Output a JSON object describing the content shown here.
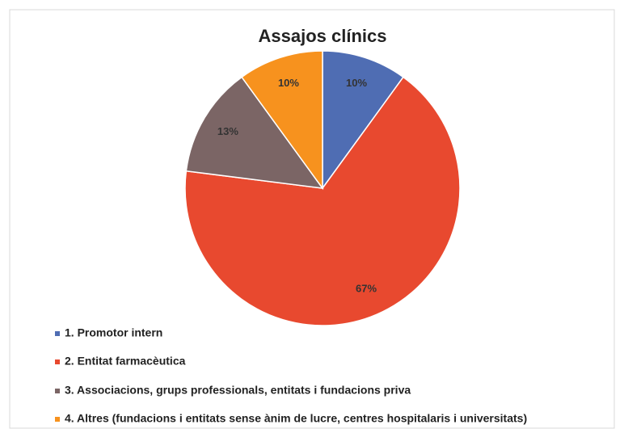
{
  "chart_data": {
    "type": "pie",
    "title": "Assajos clínics",
    "categories": [
      "1. Promotor intern",
      "2. Entitat farmacèutica",
      "3. Associacions, grups professionals, entitats i fundacions priva",
      "4. Altres (fundacions i entitats sense ànim de lucre, centres hospitalaris i universitats)"
    ],
    "values": [
      10,
      67,
      13,
      10
    ],
    "value_labels": [
      "10%",
      "67%",
      "13%",
      "10%"
    ],
    "colors": [
      "#4f6db3",
      "#e8492f",
      "#7b6565",
      "#f7921e"
    ],
    "legend": "bottom"
  }
}
